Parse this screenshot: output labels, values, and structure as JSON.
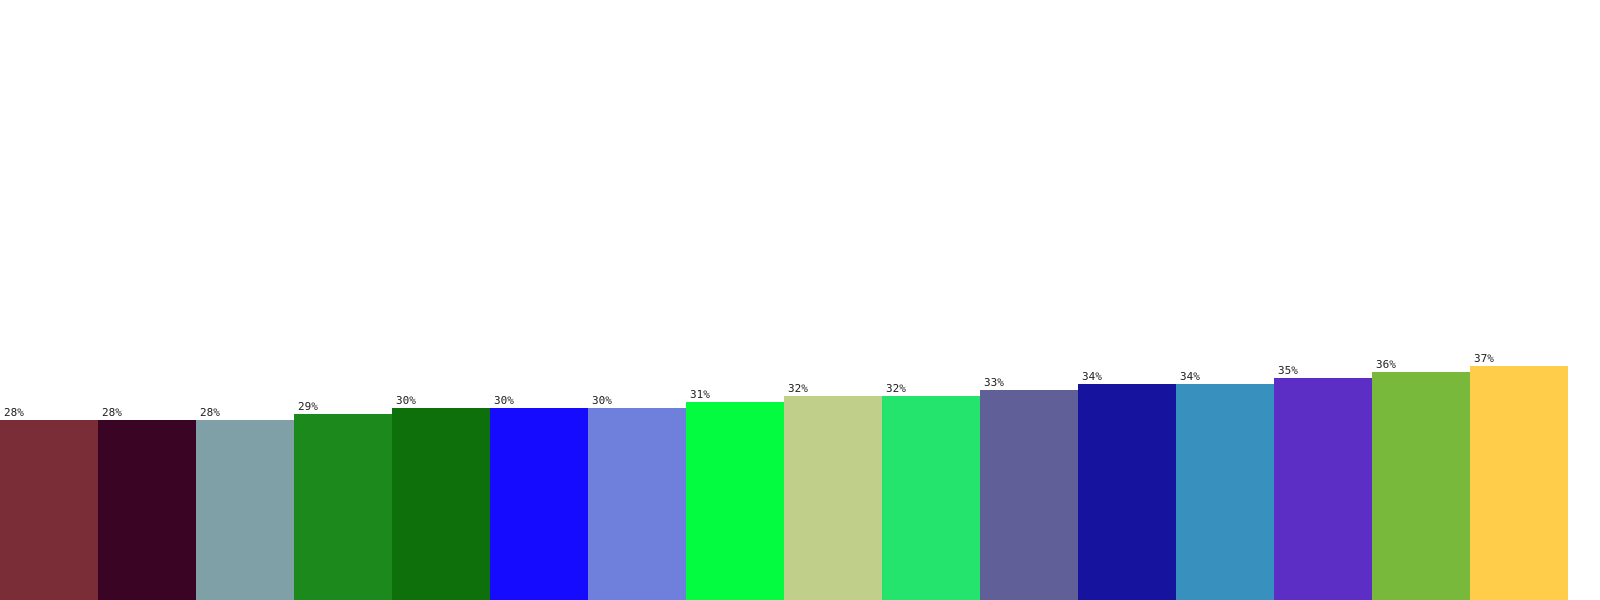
{
  "chart_data": {
    "type": "bar",
    "title": "",
    "xlabel": "",
    "ylabel": "",
    "ylim": [
      0,
      100
    ],
    "grid": false,
    "legend": "none",
    "value_suffix": "%",
    "values": [
      28,
      28,
      28,
      29,
      30,
      30,
      30,
      31,
      32,
      32,
      33,
      34,
      34,
      35,
      36,
      37
    ],
    "labels": [
      "28%",
      "28%",
      "28%",
      "29%",
      "30%",
      "30%",
      "30%",
      "31%",
      "32%",
      "32%",
      "33%",
      "34%",
      "34%",
      "35%",
      "36%",
      "37%"
    ],
    "colors": [
      "#7a2c37",
      "#3a0424",
      "#7fa0a6",
      "#1c891c",
      "#0e700a",
      "#150cff",
      "#6e80db",
      "#03fc40",
      "#c0d08a",
      "#25e46d",
      "#615f98",
      "#16139e",
      "#3790bd",
      "#5d2ec6",
      "#78b93b",
      "#ffcd49"
    ]
  }
}
